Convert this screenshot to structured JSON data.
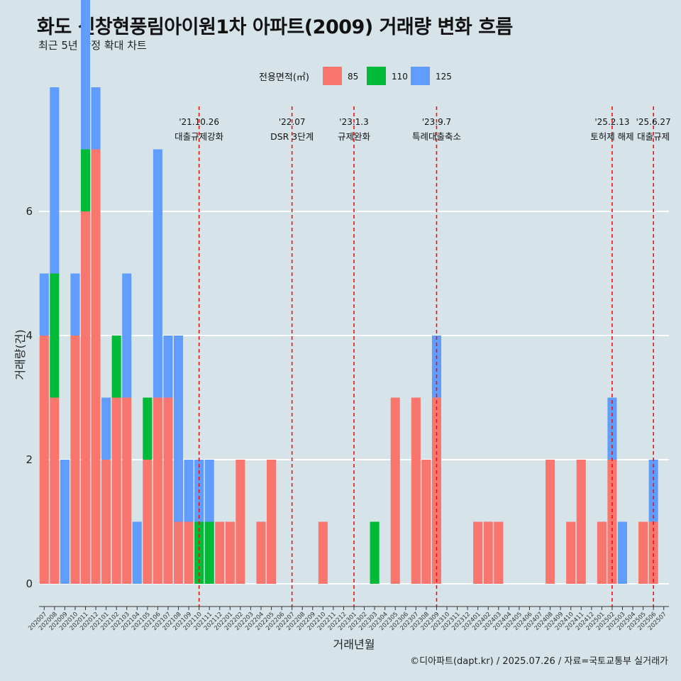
{
  "title": "화도 신창현풍림아이원1차 아파트(2009) 거래량 변화 흐름",
  "subtitle": "최근 5년 한정 확대 차트",
  "caption": "©디아파트(dapt.kr) / 2025.07.26 / 자료=국토교통부 실거래가",
  "chart_data": {
    "type": "bar",
    "xlabel": "거래년월",
    "ylabel": "거래량(건)",
    "ylim": [
      0,
      7
    ],
    "yticks": [
      0,
      2,
      4,
      6
    ],
    "grid": true,
    "legend": {
      "title": "전용면적(㎡)",
      "position": "top",
      "entries": [
        {
          "name": "85",
          "color": "#f8766d"
        },
        {
          "name": "110",
          "color": "#00ba38"
        },
        {
          "name": "125",
          "color": "#619cff"
        }
      ]
    },
    "categories": [
      "202007",
      "202008",
      "202009",
      "202010",
      "202011",
      "202012",
      "202101",
      "202102",
      "202103",
      "202104",
      "202105",
      "202106",
      "202107",
      "202108",
      "202109",
      "202110",
      "202111",
      "202112",
      "202201",
      "202202",
      "202203",
      "202204",
      "202205",
      "202206",
      "202207",
      "202208",
      "202209",
      "202210",
      "202211",
      "202212",
      "202301",
      "202302",
      "202303",
      "202304",
      "202305",
      "202306",
      "202307",
      "202308",
      "202309",
      "202310",
      "202311",
      "202312",
      "202401",
      "202402",
      "202403",
      "202404",
      "202405",
      "202406",
      "202407",
      "202408",
      "202409",
      "202410",
      "202411",
      "202412",
      "202501",
      "202502",
      "202503",
      "202504",
      "202505",
      "202506",
      "202507"
    ],
    "series": [
      {
        "name": "85",
        "values": [
          4,
          3,
          0,
          4,
          6,
          7,
          2,
          3,
          3,
          0,
          2,
          3,
          3,
          1,
          1,
          0,
          0,
          1,
          1,
          2,
          0,
          1,
          2,
          0,
          0,
          0,
          0,
          1,
          0,
          0,
          0,
          0,
          0,
          0,
          3,
          0,
          3,
          2,
          3,
          0,
          0,
          0,
          1,
          1,
          1,
          0,
          0,
          0,
          0,
          2,
          0,
          1,
          2,
          0,
          1,
          2,
          0,
          0,
          1,
          1,
          0
        ]
      },
      {
        "name": "110",
        "values": [
          0,
          2,
          0,
          0,
          1,
          0,
          0,
          1,
          0,
          0,
          1,
          0,
          0,
          0,
          0,
          1,
          1,
          0,
          0,
          0,
          0,
          0,
          0,
          0,
          0,
          0,
          0,
          0,
          0,
          0,
          0,
          0,
          1,
          0,
          0,
          0,
          0,
          0,
          0,
          0,
          0,
          0,
          0,
          0,
          0,
          0,
          0,
          0,
          0,
          0,
          0,
          0,
          0,
          0,
          0,
          0,
          0,
          0,
          0,
          0,
          0
        ]
      },
      {
        "name": "125",
        "values": [
          1,
          3,
          2,
          1,
          4,
          1,
          1,
          0,
          2,
          1,
          0,
          4,
          1,
          3,
          1,
          1,
          1,
          0,
          0,
          0,
          0,
          0,
          0,
          0,
          0,
          0,
          0,
          0,
          0,
          0,
          0,
          0,
          0,
          0,
          0,
          0,
          0,
          0,
          1,
          0,
          0,
          0,
          0,
          0,
          0,
          0,
          0,
          0,
          0,
          0,
          0,
          0,
          0,
          0,
          0,
          1,
          1,
          0,
          0,
          1,
          0
        ]
      }
    ],
    "annotations": [
      {
        "category": "202110",
        "date": "'21.10.26",
        "label": "대출규제강화"
      },
      {
        "category": "202207",
        "date": "'22.07",
        "label": "DSR 3단계"
      },
      {
        "category": "202301",
        "date": "'23.1.3",
        "label": "규제완화"
      },
      {
        "category": "202309",
        "date": "'23.9.7",
        "label": "특례대출축소"
      },
      {
        "category": "202502",
        "date": "'25.2.13",
        "label": "토허제 해제"
      },
      {
        "category": "202506",
        "date": "'25.6.27",
        "label": "대출규제"
      }
    ]
  }
}
